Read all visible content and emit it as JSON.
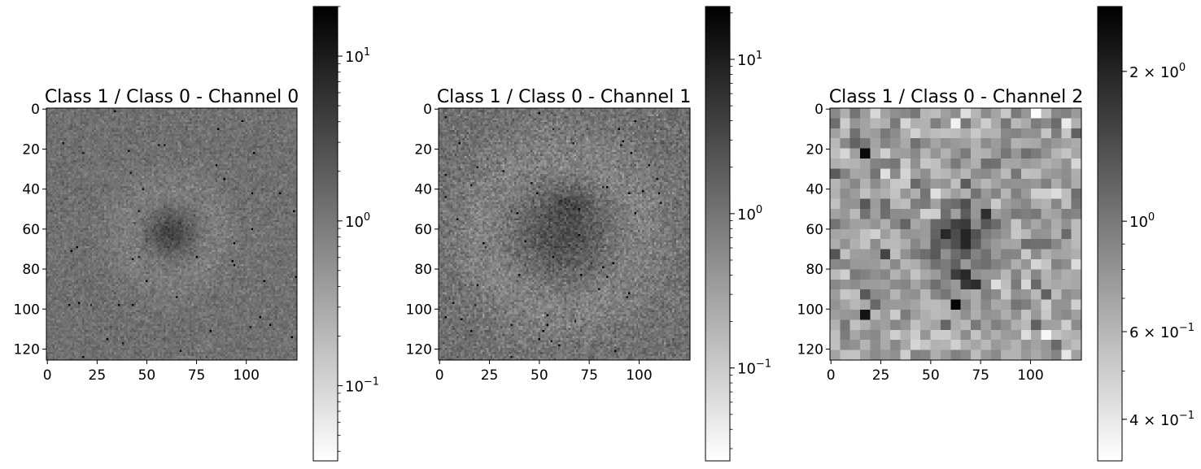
{
  "figure": {
    "panels": [
      {
        "title": "Class 1 / Class 0 - Channel 0",
        "grid": 126,
        "xticks": [
          0,
          25,
          50,
          75,
          100
        ],
        "yticks": [
          0,
          20,
          40,
          60,
          80,
          100,
          120
        ],
        "colorbar": {
          "vmin": 0.035,
          "vmax": 20,
          "ticks": [
            {
              "value": 0.1,
              "mantissa": "",
              "base": "10",
              "exp": "−1"
            },
            {
              "value": 1,
              "mantissa": "",
              "base": "10",
              "exp": "0"
            },
            {
              "value": 10,
              "mantissa": "",
              "base": "10",
              "exp": "1"
            }
          ],
          "minor": true
        },
        "pattern": {
          "blobs": [
            {
              "x": 62,
              "y": 62,
              "r": 8,
              "v": 1.2
            }
          ],
          "ring": {
            "x": 62,
            "y": 62,
            "r": 22,
            "w": 8,
            "v": -0.35
          },
          "noise": 0.55,
          "sparks": 0.003
        }
      },
      {
        "title": "Class 1 / Class 0 - Channel 1",
        "grid": 126,
        "xticks": [
          0,
          25,
          50,
          75,
          100
        ],
        "yticks": [
          0,
          20,
          40,
          60,
          80,
          100,
          120
        ],
        "colorbar": {
          "vmin": 0.025,
          "vmax": 22,
          "ticks": [
            {
              "value": 0.1,
              "mantissa": "",
              "base": "10",
              "exp": "−1"
            },
            {
              "value": 1,
              "mantissa": "",
              "base": "10",
              "exp": "0"
            },
            {
              "value": 10,
              "mantissa": "",
              "base": "10",
              "exp": "1"
            }
          ],
          "minor": true
        },
        "pattern": {
          "blobs": [
            {
              "x": 62,
              "y": 62,
              "r": 16,
              "v": 0.9
            },
            {
              "x": 66,
              "y": 48,
              "r": 5,
              "v": 0.5
            }
          ],
          "ring": {
            "x": 62,
            "y": 62,
            "r": 38,
            "w": 12,
            "v": -0.5
          },
          "noise": 0.75,
          "sparks": 0.004
        }
      },
      {
        "title": "Class 1 / Class 0 - Channel 2",
        "grid": 25,
        "xticks": [
          0,
          25,
          50,
          75,
          100
        ],
        "yticks": [
          0,
          20,
          40,
          60,
          80,
          100,
          120
        ],
        "colorbar": {
          "vmin": 0.33,
          "vmax": 2.7,
          "ticks": [
            {
              "value": 0.4,
              "mantissa": "4",
              "base": "10",
              "exp": "−1"
            },
            {
              "value": 0.6,
              "mantissa": "6",
              "base": "10",
              "exp": "−1"
            },
            {
              "value": 1,
              "mantissa": "",
              "base": "10",
              "exp": "0"
            },
            {
              "value": 2,
              "mantissa": "2",
              "base": "10",
              "exp": "0"
            }
          ],
          "minor": true
        },
        "pattern": {
          "blobs": [
            {
              "x": 12.5,
              "y": 12.5,
              "r": 2.2,
              "v": 1.4
            }
          ],
          "ring": null,
          "noise": 0.8,
          "sparks": 0.0
        }
      }
    ]
  }
}
